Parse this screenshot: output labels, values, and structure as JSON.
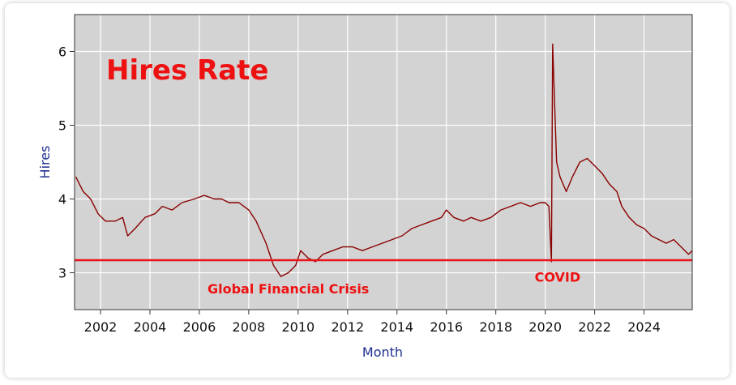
{
  "chart_data": {
    "type": "line",
    "title": "Hires Rate",
    "xlabel": "Month",
    "ylabel": "Hires",
    "xlim": [
      2000.95,
      2025.95
    ],
    "ylim": [
      2.5,
      6.5
    ],
    "yticks": [
      3,
      4,
      5,
      6
    ],
    "xticks": [
      2002,
      2004,
      2006,
      2008,
      2010,
      2012,
      2014,
      2016,
      2018,
      2020,
      2022,
      2024
    ],
    "grid": true,
    "colors": {
      "plot_bg": "#d3d3d3",
      "line": "#8b0000",
      "reference": "#e8141a",
      "grid": "#ffffff"
    },
    "reference_line": {
      "y": 3.17
    },
    "annotations": [
      {
        "text": "Global Financial Crisis",
        "x": 2009.6,
        "y": 2.72
      },
      {
        "text": "COVID",
        "x": 2020.5,
        "y": 2.88
      }
    ],
    "series": [
      {
        "points": [
          [
            2001.0,
            4.3
          ],
          [
            2001.3,
            4.1
          ],
          [
            2001.6,
            4.0
          ],
          [
            2001.9,
            3.8
          ],
          [
            2002.2,
            3.7
          ],
          [
            2002.6,
            3.7
          ],
          [
            2002.9,
            3.75
          ],
          [
            2003.1,
            3.5
          ],
          [
            2003.4,
            3.6
          ],
          [
            2003.8,
            3.75
          ],
          [
            2004.2,
            3.8
          ],
          [
            2004.5,
            3.9
          ],
          [
            2004.9,
            3.85
          ],
          [
            2005.3,
            3.95
          ],
          [
            2005.8,
            4.0
          ],
          [
            2006.2,
            4.05
          ],
          [
            2006.6,
            4.0
          ],
          [
            2006.9,
            4.0
          ],
          [
            2007.2,
            3.95
          ],
          [
            2007.6,
            3.95
          ],
          [
            2008.0,
            3.85
          ],
          [
            2008.3,
            3.7
          ],
          [
            2008.7,
            3.4
          ],
          [
            2009.0,
            3.1
          ],
          [
            2009.3,
            2.95
          ],
          [
            2009.6,
            3.0
          ],
          [
            2009.9,
            3.1
          ],
          [
            2010.1,
            3.3
          ],
          [
            2010.4,
            3.2
          ],
          [
            2010.7,
            3.15
          ],
          [
            2011.0,
            3.25
          ],
          [
            2011.4,
            3.3
          ],
          [
            2011.8,
            3.35
          ],
          [
            2012.2,
            3.35
          ],
          [
            2012.6,
            3.3
          ],
          [
            2013.0,
            3.35
          ],
          [
            2013.4,
            3.4
          ],
          [
            2013.8,
            3.45
          ],
          [
            2014.2,
            3.5
          ],
          [
            2014.6,
            3.6
          ],
          [
            2015.0,
            3.65
          ],
          [
            2015.4,
            3.7
          ],
          [
            2015.8,
            3.75
          ],
          [
            2016.0,
            3.85
          ],
          [
            2016.3,
            3.75
          ],
          [
            2016.7,
            3.7
          ],
          [
            2017.0,
            3.75
          ],
          [
            2017.4,
            3.7
          ],
          [
            2017.8,
            3.75
          ],
          [
            2018.2,
            3.85
          ],
          [
            2018.6,
            3.9
          ],
          [
            2019.0,
            3.95
          ],
          [
            2019.4,
            3.9
          ],
          [
            2019.8,
            3.95
          ],
          [
            2020.0,
            3.95
          ],
          [
            2020.15,
            3.9
          ],
          [
            2020.25,
            3.15
          ],
          [
            2020.3,
            6.1
          ],
          [
            2020.38,
            5.3
          ],
          [
            2020.46,
            4.5
          ],
          [
            2020.6,
            4.3
          ],
          [
            2020.85,
            4.1
          ],
          [
            2021.1,
            4.3
          ],
          [
            2021.4,
            4.5
          ],
          [
            2021.7,
            4.55
          ],
          [
            2022.0,
            4.45
          ],
          [
            2022.3,
            4.35
          ],
          [
            2022.6,
            4.2
          ],
          [
            2022.9,
            4.1
          ],
          [
            2023.1,
            3.9
          ],
          [
            2023.4,
            3.75
          ],
          [
            2023.7,
            3.65
          ],
          [
            2024.0,
            3.6
          ],
          [
            2024.3,
            3.5
          ],
          [
            2024.6,
            3.45
          ],
          [
            2024.9,
            3.4
          ],
          [
            2025.2,
            3.45
          ],
          [
            2025.5,
            3.35
          ],
          [
            2025.8,
            3.25
          ],
          [
            2025.95,
            3.3
          ]
        ]
      }
    ]
  }
}
